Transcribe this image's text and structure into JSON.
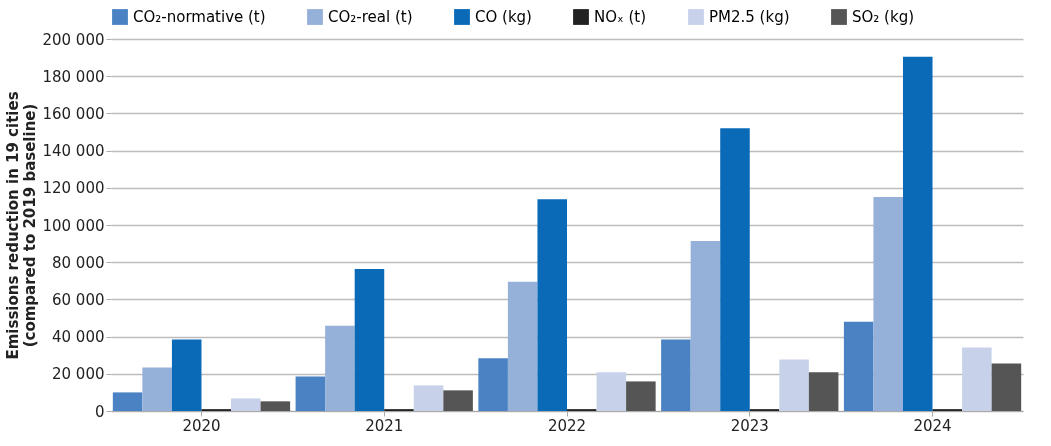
{
  "chart_data": {
    "type": "bar",
    "ylabel": "Emissions reduction in 19 cities\n(compared to 2019 baseline)",
    "categories": [
      "2020",
      "2021",
      "2022",
      "2023",
      "2024"
    ],
    "series": [
      {
        "name": "CO₂-normative (t)",
        "color": "#4a82c3",
        "values": [
          10000,
          18600,
          28400,
          38400,
          48000
        ]
      },
      {
        "name": "CO₂-real (t)",
        "color": "#95b0d9",
        "values": [
          23400,
          45900,
          69500,
          91400,
          115000
        ]
      },
      {
        "name": "CO (kg)",
        "color": "#0a6ab8",
        "values": [
          38400,
          76300,
          113900,
          152000,
          190500
        ]
      },
      {
        "name": "NOₓ (t)",
        "color": "#222222",
        "values": [
          1000,
          1000,
          1000,
          1000,
          1000
        ]
      },
      {
        "name": "PM2.5 (kg)",
        "color": "#c7d2ea",
        "values": [
          6800,
          13800,
          20900,
          27700,
          34100
        ]
      },
      {
        "name": "SO₂ (kg)",
        "color": "#555555",
        "values": [
          5200,
          11100,
          15900,
          20900,
          25500
        ]
      }
    ],
    "ylim": [
      0,
      200000
    ],
    "yticks": [
      0,
      {
        "value": 20000,
        "label": "20 000"
      },
      {
        "value": 40000,
        "label": "40 000"
      },
      {
        "value": 60000,
        "label": "60 000"
      },
      {
        "value": 80000,
        "label": "80 000"
      },
      {
        "value": 100000,
        "label": "100 000"
      },
      {
        "value": 120000,
        "label": "120 000"
      },
      {
        "value": 140000,
        "label": "140 000"
      },
      {
        "value": 160000,
        "label": "160 000"
      },
      {
        "value": 180000,
        "label": "180 000"
      },
      {
        "value": 200000,
        "label": "200 000"
      }
    ],
    "grid": "y",
    "legend": "top"
  }
}
